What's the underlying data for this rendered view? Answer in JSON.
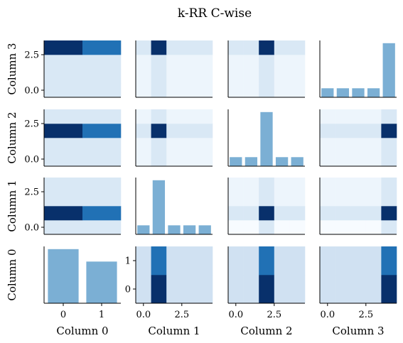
{
  "chart_data": {
    "type": "heatmap",
    "title": "k-RR C-wise",
    "columns": [
      "Column 0",
      "Column 1",
      "Column 2",
      "Column 3"
    ],
    "bar_color": "#7bafd4",
    "colormap": [
      "#f7fbff",
      "#deebf7",
      "#c6dbef",
      "#9ecae1",
      "#6baed6",
      "#4292c6",
      "#2171b5",
      "#08519c",
      "#08306b"
    ],
    "cells": [
      {
        "row": 0,
        "col": 0,
        "type": "heatmap",
        "nx": 2,
        "ny": 4,
        "extent": [
          -0.5,
          1.5,
          -0.5,
          3.5
        ],
        "values": [
          [
            0.15,
            0.15
          ],
          [
            0.15,
            0.15
          ],
          [
            0.15,
            0.15
          ],
          [
            1.0,
            0.75
          ]
        ],
        "xticks": [],
        "yticks": [
          {
            "v": 0.0,
            "label": "0.0"
          },
          {
            "v": 2.5,
            "label": "2.5"
          }
        ],
        "ylabel": "Column 3",
        "xlabel": ""
      },
      {
        "row": 0,
        "col": 1,
        "type": "heatmap",
        "nx": 5,
        "ny": 4,
        "extent": [
          -0.5,
          4.5,
          -0.5,
          3.5
        ],
        "values": [
          [
            0.05,
            0.15,
            0.05,
            0.05,
            0.05
          ],
          [
            0.05,
            0.15,
            0.05,
            0.05,
            0.05
          ],
          [
            0.05,
            0.15,
            0.05,
            0.05,
            0.05
          ],
          [
            0.15,
            1.0,
            0.15,
            0.15,
            0.15
          ]
        ],
        "xticks": [],
        "yticks": [],
        "ylabel": "",
        "xlabel": ""
      },
      {
        "row": 0,
        "col": 2,
        "type": "heatmap",
        "nx": 5,
        "ny": 4,
        "extent": [
          -0.5,
          4.5,
          -0.5,
          3.5
        ],
        "values": [
          [
            0.05,
            0.05,
            0.15,
            0.05,
            0.05
          ],
          [
            0.05,
            0.05,
            0.15,
            0.05,
            0.05
          ],
          [
            0.05,
            0.05,
            0.15,
            0.05,
            0.05
          ],
          [
            0.15,
            0.15,
            1.0,
            0.15,
            0.15
          ]
        ],
        "xticks": [],
        "yticks": [],
        "ylabel": "",
        "xlabel": ""
      },
      {
        "row": 0,
        "col": 3,
        "type": "bar",
        "categories": [
          0,
          1,
          2,
          3,
          4
        ],
        "values": [
          1,
          1,
          1,
          1,
          6
        ],
        "xlim": [
          -0.5,
          4.5
        ],
        "ylim": [
          0,
          6.3
        ],
        "xticks": [],
        "yticks": [],
        "ylabel": "",
        "xlabel": ""
      },
      {
        "row": 1,
        "col": 0,
        "type": "heatmap",
        "nx": 2,
        "ny": 4,
        "extent": [
          -0.5,
          1.5,
          -0.5,
          3.5
        ],
        "values": [
          [
            0.15,
            0.15
          ],
          [
            0.15,
            0.15
          ],
          [
            1.0,
            0.75
          ],
          [
            0.15,
            0.15
          ]
        ],
        "xticks": [],
        "yticks": [
          {
            "v": 0.0,
            "label": "0.0"
          },
          {
            "v": 2.5,
            "label": "2.5"
          }
        ],
        "ylabel": "Column 2",
        "xlabel": ""
      },
      {
        "row": 1,
        "col": 1,
        "type": "heatmap",
        "nx": 5,
        "ny": 4,
        "extent": [
          -0.5,
          4.5,
          -0.5,
          3.5
        ],
        "values": [
          [
            0.05,
            0.15,
            0.05,
            0.05,
            0.05
          ],
          [
            0.05,
            0.15,
            0.05,
            0.05,
            0.05
          ],
          [
            0.15,
            1.0,
            0.15,
            0.15,
            0.15
          ],
          [
            0.05,
            0.15,
            0.05,
            0.05,
            0.05
          ]
        ],
        "xticks": [],
        "yticks": [],
        "ylabel": "",
        "xlabel": ""
      },
      {
        "row": 1,
        "col": 2,
        "type": "bar",
        "categories": [
          0,
          1,
          2,
          3,
          4
        ],
        "values": [
          1,
          1,
          6,
          1,
          1
        ],
        "xlim": [
          -0.5,
          4.5
        ],
        "ylim": [
          0,
          6.3
        ],
        "xticks": [],
        "yticks": [],
        "ylabel": "",
        "xlabel": ""
      },
      {
        "row": 1,
        "col": 3,
        "type": "heatmap",
        "nx": 5,
        "ny": 4,
        "extent": [
          -0.5,
          4.5,
          -0.5,
          3.5
        ],
        "values": [
          [
            0.05,
            0.05,
            0.05,
            0.05,
            0.15
          ],
          [
            0.05,
            0.05,
            0.05,
            0.05,
            0.15
          ],
          [
            0.15,
            0.15,
            0.15,
            0.15,
            1.0
          ],
          [
            0.05,
            0.05,
            0.05,
            0.05,
            0.15
          ]
        ],
        "xticks": [],
        "yticks": [],
        "ylabel": "",
        "xlabel": ""
      },
      {
        "row": 2,
        "col": 0,
        "type": "heatmap",
        "nx": 2,
        "ny": 4,
        "extent": [
          -0.5,
          1.5,
          -0.5,
          3.5
        ],
        "values": [
          [
            0.15,
            0.15
          ],
          [
            1.0,
            0.75
          ],
          [
            0.15,
            0.15
          ],
          [
            0.15,
            0.15
          ]
        ],
        "xticks": [],
        "yticks": [
          {
            "v": 0.0,
            "label": "0.0"
          },
          {
            "v": 2.5,
            "label": "2.5"
          }
        ],
        "ylabel": "Column 1",
        "xlabel": ""
      },
      {
        "row": 2,
        "col": 1,
        "type": "bar",
        "categories": [
          0,
          1,
          2,
          3,
          4
        ],
        "values": [
          1,
          6,
          1,
          1,
          1
        ],
        "xlim": [
          -0.5,
          4.5
        ],
        "ylim": [
          0,
          6.3
        ],
        "xticks": [],
        "yticks": [],
        "ylabel": "",
        "xlabel": ""
      },
      {
        "row": 2,
        "col": 2,
        "type": "heatmap",
        "nx": 5,
        "ny": 4,
        "extent": [
          -0.5,
          4.5,
          -0.5,
          3.5
        ],
        "values": [
          [
            0.0,
            0.0,
            0.15,
            0.0,
            0.0
          ],
          [
            0.15,
            0.15,
            1.0,
            0.15,
            0.15
          ],
          [
            0.05,
            0.05,
            0.15,
            0.05,
            0.05
          ],
          [
            0.05,
            0.05,
            0.15,
            0.05,
            0.05
          ]
        ],
        "xticks": [],
        "yticks": [],
        "ylabel": "",
        "xlabel": ""
      },
      {
        "row": 2,
        "col": 3,
        "type": "heatmap",
        "nx": 5,
        "ny": 4,
        "extent": [
          -0.5,
          4.5,
          -0.5,
          3.5
        ],
        "values": [
          [
            0.0,
            0.0,
            0.0,
            0.0,
            0.15
          ],
          [
            0.15,
            0.15,
            0.15,
            0.15,
            1.0
          ],
          [
            0.05,
            0.05,
            0.05,
            0.05,
            0.15
          ],
          [
            0.05,
            0.05,
            0.05,
            0.05,
            0.15
          ]
        ],
        "xticks": [],
        "yticks": [],
        "ylabel": "",
        "xlabel": ""
      },
      {
        "row": 3,
        "col": 0,
        "type": "bar",
        "categories": [
          0,
          1
        ],
        "values": [
          1.0,
          0.77
        ],
        "xlim": [
          -0.5,
          1.5
        ],
        "ylim": [
          0,
          1.05
        ],
        "xticks": [
          {
            "v": 0,
            "label": "0"
          },
          {
            "v": 1,
            "label": "1"
          }
        ],
        "yticks": [],
        "ylabel": "Column 0",
        "xlabel": "Column 0"
      },
      {
        "row": 3,
        "col": 1,
        "type": "heatmap",
        "nx": 5,
        "ny": 2,
        "extent": [
          -0.5,
          4.5,
          -0.5,
          1.5
        ],
        "values": [
          [
            0.2,
            1.0,
            0.2,
            0.2,
            0.2
          ],
          [
            0.2,
            0.75,
            0.2,
            0.2,
            0.2
          ]
        ],
        "xticks": [
          {
            "v": 0.0,
            "label": "0.0"
          },
          {
            "v": 2.5,
            "label": "2.5"
          }
        ],
        "yticks": [
          {
            "v": 0,
            "label": "0"
          },
          {
            "v": 1,
            "label": "1"
          }
        ],
        "ylabel": "",
        "xlabel": "Column 1"
      },
      {
        "row": 3,
        "col": 2,
        "type": "heatmap",
        "nx": 5,
        "ny": 2,
        "extent": [
          -0.5,
          4.5,
          -0.5,
          1.5
        ],
        "values": [
          [
            0.2,
            0.2,
            1.0,
            0.2,
            0.2
          ],
          [
            0.2,
            0.2,
            0.75,
            0.2,
            0.2
          ]
        ],
        "xticks": [
          {
            "v": 0.0,
            "label": "0.0"
          },
          {
            "v": 2.5,
            "label": "2.5"
          }
        ],
        "yticks": [],
        "ylabel": "",
        "xlabel": "Column 2"
      },
      {
        "row": 3,
        "col": 3,
        "type": "heatmap",
        "nx": 5,
        "ny": 2,
        "extent": [
          -0.5,
          4.5,
          -0.5,
          1.5
        ],
        "values": [
          [
            0.2,
            0.2,
            0.2,
            0.2,
            1.0
          ],
          [
            0.2,
            0.2,
            0.2,
            0.2,
            0.75
          ]
        ],
        "xticks": [
          {
            "v": 0.0,
            "label": "0.0"
          },
          {
            "v": 2.5,
            "label": "2.5"
          }
        ],
        "yticks": [],
        "ylabel": "",
        "xlabel": "Column 3"
      }
    ]
  }
}
